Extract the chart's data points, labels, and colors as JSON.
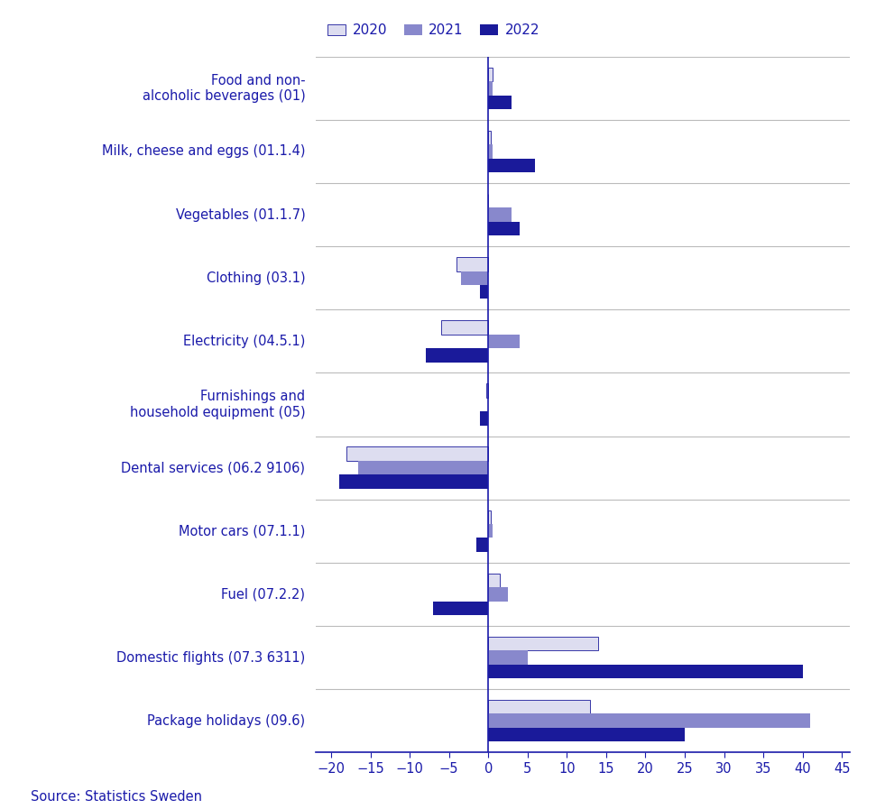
{
  "categories": [
    "Food and non-\nalcoholic beverages (01)",
    "Milk, cheese and eggs (01.1.4)",
    "Vegetables (01.1.7)",
    "Clothing (03.1)",
    "Electricity (04.5.1)",
    "Furnishings and\nhousehold equipment (05)",
    "Dental services (06.2 9106)",
    "Motor cars (07.1.1)",
    "Fuel (07.2.2)",
    "Domestic flights (07.3 6311)",
    "Package holidays (09.6)"
  ],
  "values_2020": [
    0.5,
    0.3,
    0.0,
    -4.0,
    -6.0,
    -0.3,
    -18.0,
    0.3,
    1.5,
    14.0,
    13.0
  ],
  "values_2021": [
    0.5,
    0.5,
    3.0,
    -3.5,
    4.0,
    0.0,
    -16.5,
    0.5,
    2.5,
    5.0,
    41.0
  ],
  "values_2022": [
    3.0,
    6.0,
    4.0,
    -1.0,
    -8.0,
    -1.0,
    -19.0,
    -1.5,
    -7.0,
    40.0,
    25.0
  ],
  "color_2020": "#ddddf0",
  "color_2021": "#8888cc",
  "color_2022": "#1a1a9a",
  "xlim": [
    -22,
    46
  ],
  "xticks": [
    -20,
    -15,
    -10,
    -5,
    0,
    5,
    10,
    15,
    20,
    25,
    30,
    35,
    40,
    45
  ],
  "source_text": "Source: Statistics Sweden",
  "legend_labels": [
    "2020",
    "2021",
    "2022"
  ],
  "bar_height": 0.22,
  "background_color": "#ffffff",
  "grid_color": "#bbbbbb",
  "text_color": "#1a1aaa"
}
